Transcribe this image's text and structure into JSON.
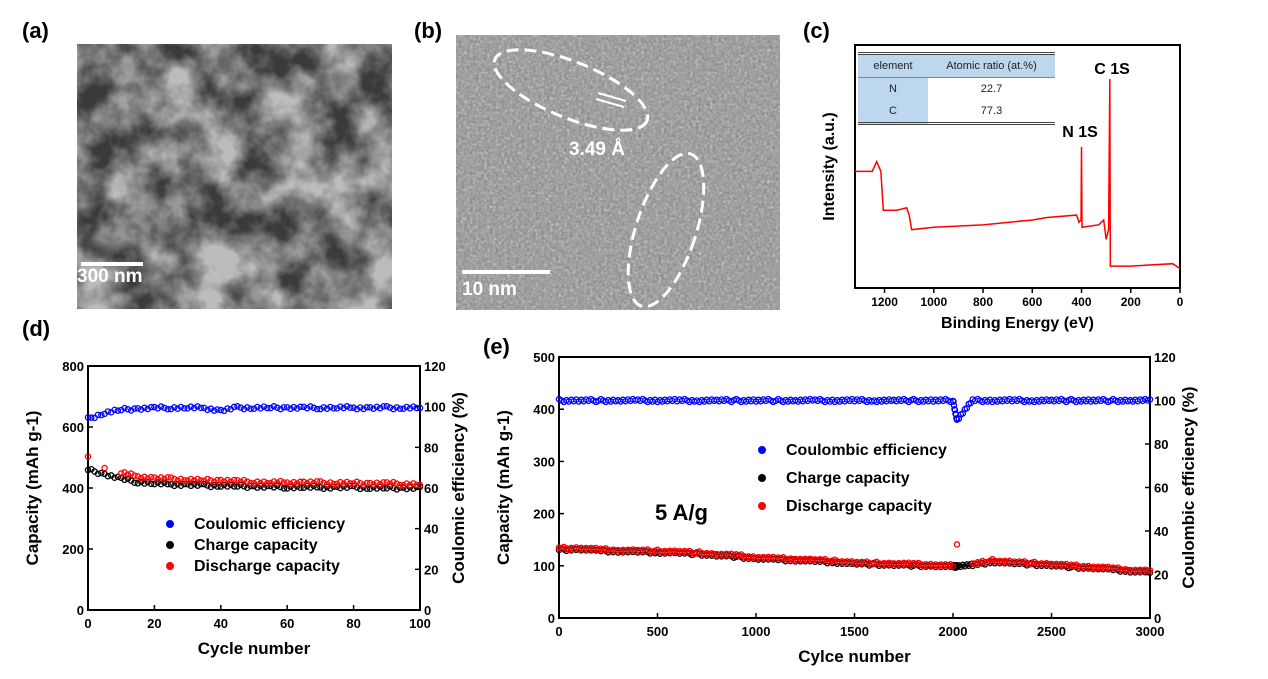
{
  "panels": {
    "a": "(a)",
    "b": "(b)",
    "c": "(c)",
    "d": "(d)",
    "e": "(e)"
  },
  "sem": {
    "scale_bar": "300 nm"
  },
  "tem": {
    "scale_bar": "10 nm",
    "lattice_spacing": "3.49 Å"
  },
  "xps_table": {
    "headers": [
      "element",
      "Atomic ratio (at.%)"
    ],
    "rows": [
      [
        "N",
        "22.7"
      ],
      [
        "C",
        "77.3"
      ]
    ]
  },
  "chart_data": [
    {
      "id": "c",
      "type": "line",
      "xlabel": "Binding Energy (eV)",
      "ylabel": "Intensity (a.u.)",
      "xlim": [
        1320,
        0
      ],
      "x_reversed": true,
      "ylim": [
        0,
        100
      ],
      "xticks": [
        1200,
        1000,
        800,
        600,
        400,
        200,
        0
      ],
      "color": "#ff0000",
      "annotations": [
        "N 1S",
        "C 1S"
      ],
      "x": [
        1320,
        1250,
        1232,
        1215,
        1205,
        1150,
        1110,
        1100,
        1090,
        1000,
        800,
        600,
        540,
        420,
        410,
        402,
        400,
        398,
        330,
        310,
        300,
        290,
        285,
        283,
        200,
        30,
        0
      ],
      "y": [
        48,
        48,
        52,
        48,
        32,
        32,
        33,
        30,
        24,
        25,
        26,
        28,
        29,
        30,
        27,
        28,
        58,
        25,
        26,
        28,
        20,
        24,
        86,
        9,
        9,
        10,
        8
      ]
    },
    {
      "id": "d",
      "type": "scatter",
      "xlabel": "Cycle number",
      "ylabel": "Capacity (mAh g-1)",
      "ylabel2": "Coulomic efficiency (%)",
      "xlim": [
        0,
        100
      ],
      "ylim": [
        0,
        800
      ],
      "ylim2": [
        0,
        120
      ],
      "xticks": [
        0,
        20,
        40,
        60,
        80,
        100
      ],
      "yticks": [
        0,
        200,
        400,
        600,
        800
      ],
      "yticks2": [
        0,
        20,
        40,
        60,
        80,
        100,
        120
      ],
      "x": [
        0,
        5,
        10,
        15,
        20,
        25,
        30,
        35,
        40,
        45,
        50,
        55,
        60,
        65,
        70,
        75,
        80,
        85,
        90,
        95,
        100
      ],
      "series": [
        {
          "name": "Coulomic efficiency",
          "axis": "right",
          "color": "#0000ff",
          "values": [
            94,
            97,
            98.5,
            99,
            99.3,
            99.5,
            99.5,
            99.4,
            98,
            99.5,
            99.5,
            99.5,
            99.5,
            99.4,
            99.5,
            99.5,
            99.5,
            99.3,
            99.5,
            99.5,
            99.5
          ]
        },
        {
          "name": "Charge capacity",
          "axis": "left",
          "color": "#000000",
          "values": [
            460,
            445,
            430,
            420,
            415,
            412,
            410,
            408,
            408,
            406,
            405,
            403,
            403,
            403,
            402,
            402,
            402,
            401,
            400,
            400,
            400
          ]
        },
        {
          "name": "Discharge capacity",
          "axis": "left",
          "color": "#ff0000",
          "values": [
            500,
            470,
            450,
            438,
            432,
            430,
            428,
            425,
            425,
            422,
            420,
            418,
            418,
            418,
            417,
            417,
            416,
            415,
            415,
            414,
            412
          ]
        }
      ]
    },
    {
      "id": "e",
      "type": "scatter",
      "xlabel": "Cylce number",
      "ylabel": "Capacity (mAh g-1)",
      "ylabel2": "Coulombic efficiency (%)",
      "annotation": "5 A/g",
      "xlim": [
        0,
        3000
      ],
      "ylim": [
        0,
        500
      ],
      "ylim2": [
        0,
        120
      ],
      "xticks": [
        0,
        500,
        1000,
        1500,
        2000,
        2500,
        3000
      ],
      "yticks": [
        0,
        100,
        200,
        300,
        400,
        500
      ],
      "yticks2": [
        0,
        20,
        40,
        60,
        80,
        100,
        120
      ],
      "x": [
        0,
        100,
        200,
        300,
        400,
        500,
        600,
        700,
        800,
        900,
        1000,
        1100,
        1200,
        1300,
        1400,
        1500,
        1600,
        1700,
        1800,
        1900,
        2000,
        2020,
        2100,
        2200,
        2300,
        2400,
        2500,
        2600,
        2700,
        2800,
        2900,
        3000
      ],
      "series": [
        {
          "name": "Coulombic efficiency",
          "axis": "right",
          "color": "#0000ff",
          "values": [
            100,
            100,
            100,
            100,
            100,
            100,
            100,
            100,
            100,
            100,
            100,
            100,
            100,
            100,
            100,
            100,
            100,
            100,
            100,
            100,
            100,
            91,
            100,
            100,
            100,
            100,
            100,
            100,
            100,
            100,
            100,
            100
          ]
        },
        {
          "name": "Charge capacity",
          "axis": "left",
          "color": "#000000",
          "values": [
            131,
            132,
            129,
            128,
            127,
            126,
            125,
            123,
            120,
            118,
            114,
            112,
            111,
            109,
            107,
            104,
            103,
            102,
            101,
            100,
            98,
            100,
            101,
            108,
            105,
            103,
            101,
            98,
            96,
            93,
            90,
            88
          ]
        },
        {
          "name": "Discharge capacity",
          "axis": "left",
          "color": "#ff0000",
          "values": [
            133,
            134,
            131,
            130,
            129,
            128,
            127,
            125,
            122,
            120,
            116,
            114,
            113,
            111,
            109,
            106,
            105,
            104,
            103,
            102,
            100,
            141,
            103,
            110,
            107,
            105,
            103,
            100,
            98,
            95,
            92,
            90
          ]
        }
      ]
    }
  ]
}
